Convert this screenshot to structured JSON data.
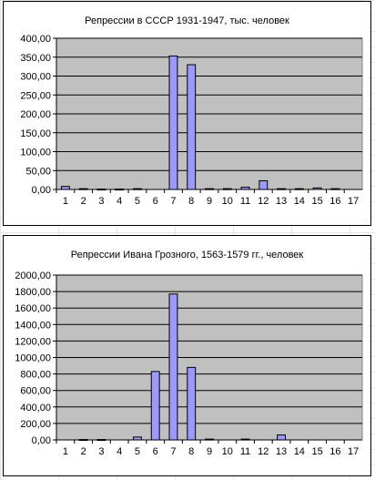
{
  "chart_data": [
    {
      "type": "bar",
      "title": "Репрессии в СССР 1931-1947, тыс. человек",
      "categories": [
        "1",
        "2",
        "3",
        "4",
        "5",
        "6",
        "7",
        "8",
        "9",
        "10",
        "11",
        "12",
        "13",
        "14",
        "15",
        "16",
        "17"
      ],
      "values": [
        8,
        2,
        1,
        1,
        2,
        0,
        353,
        330,
        2,
        2,
        6,
        23,
        2,
        2,
        4,
        2,
        0
      ],
      "ylim": [
        0,
        400
      ],
      "yticks": [
        "0,00",
        "50,00",
        "100,00",
        "150,00",
        "200,00",
        "250,00",
        "300,00",
        "350,00",
        "400,00"
      ],
      "xlabel": "",
      "ylabel": "",
      "grid": true
    },
    {
      "type": "bar",
      "title": "Репрессии Ивана Грозного, 1563-1579 гг., человек",
      "categories": [
        "1",
        "2",
        "3",
        "4",
        "5",
        "6",
        "7",
        "8",
        "9",
        "10",
        "11",
        "12",
        "13",
        "14",
        "15",
        "16",
        "17"
      ],
      "values": [
        0,
        5,
        5,
        0,
        35,
        830,
        1770,
        880,
        10,
        0,
        10,
        0,
        60,
        0,
        0,
        0,
        0
      ],
      "ylim": [
        0,
        2000
      ],
      "yticks": [
        "0,00",
        "200,00",
        "400,00",
        "600,00",
        "800,00",
        "1000,00",
        "1200,00",
        "1400,00",
        "1600,00",
        "1800,00",
        "2000,00"
      ],
      "xlabel": "",
      "ylabel": "",
      "grid": true
    }
  ],
  "colors": {
    "plot_bg": "#c0c0c0",
    "bar_fill": "#9999ff",
    "bar_stroke": "#000000",
    "grid": "#000000"
  }
}
